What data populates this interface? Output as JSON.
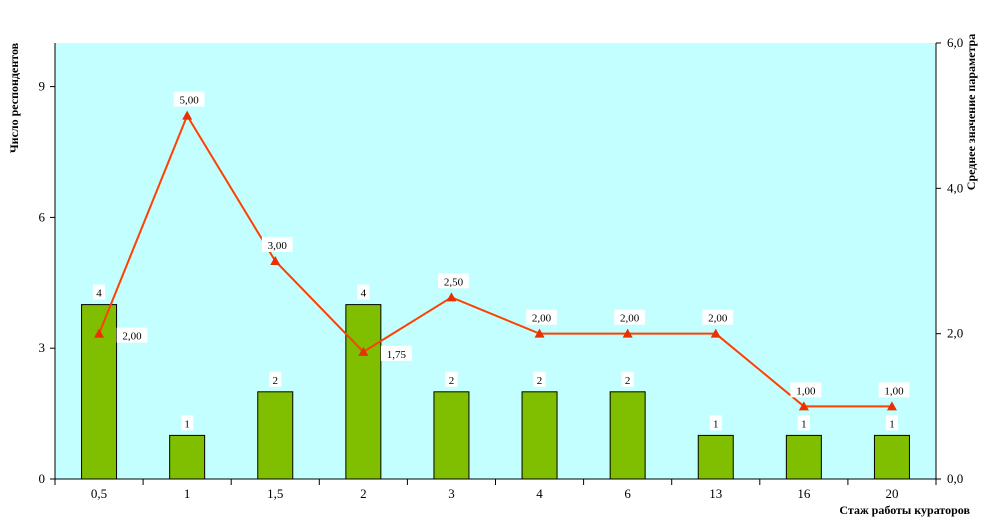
{
  "chart_data": {
    "type": "bar+line",
    "title": "",
    "xlabel": "Стаж работы кураторов",
    "ylabel_left": "Число респондентов",
    "ylabel_right": "Среднее значение параметра",
    "categories": [
      "0,5",
      "1",
      "1,5",
      "2",
      "3",
      "4",
      "6",
      "13",
      "16",
      "20"
    ],
    "y_left": {
      "range": [
        0,
        10
      ],
      "ticks": [
        "0",
        "3",
        "6",
        "9"
      ],
      "tick_values": [
        0,
        3,
        6,
        9
      ]
    },
    "y_right": {
      "range": [
        0,
        6
      ],
      "ticks": [
        "0,0",
        "2,0",
        "4,0",
        "6,0"
      ],
      "tick_values": [
        0,
        2,
        4,
        6
      ]
    },
    "series": [
      {
        "type": "bar",
        "axis": "left",
        "values": [
          4,
          1,
          2,
          4,
          2,
          2,
          2,
          1,
          1,
          1
        ],
        "labels": [
          "4",
          "1",
          "2",
          "4",
          "2",
          "2",
          "2",
          "1",
          "1",
          "1"
        ]
      },
      {
        "type": "line",
        "axis": "right",
        "values": [
          2.0,
          5.0,
          3.0,
          1.75,
          2.5,
          2.0,
          2.0,
          2.0,
          1.0,
          1.0
        ],
        "labels": [
          "2,00",
          "5,00",
          "3,00",
          "1,75",
          "2,50",
          "2,00",
          "2,00",
          "2,00",
          "1,00",
          "1,00"
        ]
      }
    ],
    "grid": false,
    "legend": "none",
    "colors": {
      "plot_background": "#c4ffff",
      "bar_fill": "#7fbf00",
      "bar_stroke": "#000000",
      "line": "#ff4000",
      "marker": "#e83000"
    }
  }
}
